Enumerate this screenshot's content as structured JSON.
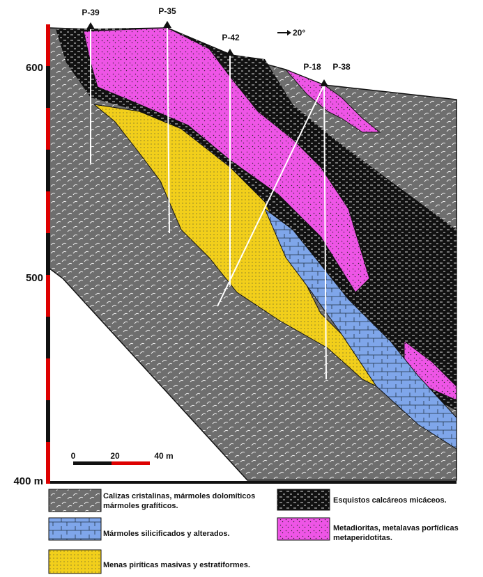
{
  "drill_holes": [
    "P-39",
    "P-35",
    "P-42",
    "P-18",
    "P-38"
  ],
  "orientation": "20°",
  "elevation_labels": [
    "600",
    "500",
    "400 m"
  ],
  "scale_labels": [
    "0",
    "20",
    "40 m"
  ],
  "legend": [
    {
      "lines": [
        "Calizas cristalinas, mármoles dolomíticos",
        "mármoles grafíticos."
      ]
    },
    {
      "lines": [
        "Esquistos calcáreos micáceos."
      ]
    },
    {
      "lines": [
        "Mármoles silicificados y alterados."
      ]
    },
    {
      "lines": [
        "Metadioritas, metalavas porfídicas",
        "metaperidotitas."
      ]
    },
    {
      "lines": [
        "Menas piríticas masivas y estratiformes."
      ]
    }
  ]
}
